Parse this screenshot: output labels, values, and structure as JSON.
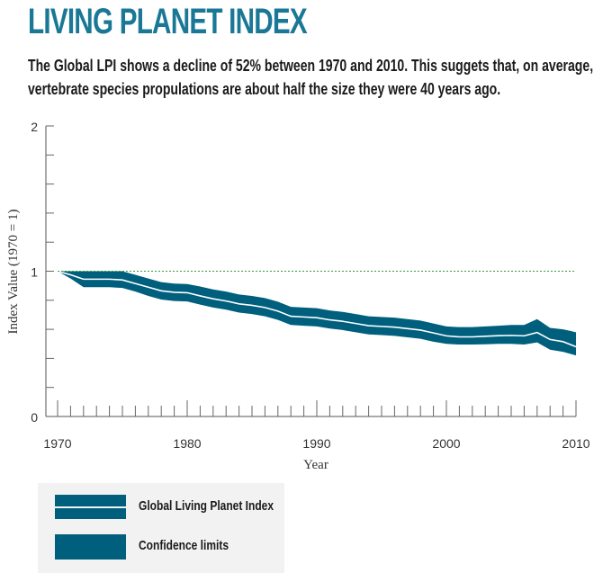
{
  "title": "LIVING PLANET INDEX",
  "subtitle_lines": [
    "The Global LPI shows a decline of 52% between 1970 and 2010. This suggets that, on average,",
    "vertebrate species propulations are about half the size they were 40 years ago."
  ],
  "chart_data": {
    "type": "area",
    "xlabel": "Year",
    "ylabel": "Index Value (1970 = 1)",
    "xlim": [
      1970,
      2010
    ],
    "ylim": [
      0,
      2
    ],
    "x_tick_labels": [
      "1970",
      "1980",
      "1990",
      "2000",
      "2010"
    ],
    "y_tick_labels": [
      "0",
      "1",
      "2"
    ],
    "reference_line": 1,
    "grid": false,
    "legend_placement": "bottom-left",
    "colors": {
      "band": "#005f7d",
      "index_line": "#ffffff",
      "reference_line": "#3a9a3a",
      "title": "#1a7896"
    },
    "x": [
      1970,
      1971,
      1972,
      1973,
      1974,
      1975,
      1976,
      1977,
      1978,
      1979,
      1980,
      1981,
      1982,
      1983,
      1984,
      1985,
      1986,
      1987,
      1988,
      1989,
      1990,
      1991,
      1992,
      1993,
      1994,
      1995,
      1996,
      1997,
      1998,
      1999,
      2000,
      2001,
      2002,
      2003,
      2004,
      2005,
      2006,
      2007,
      2008,
      2009,
      2010
    ],
    "series": [
      {
        "name": "Global Living Planet Index",
        "values": [
          1.0,
          0.975,
          0.945,
          0.945,
          0.945,
          0.94,
          0.915,
          0.89,
          0.865,
          0.855,
          0.852,
          0.83,
          0.81,
          0.795,
          0.775,
          0.765,
          0.75,
          0.725,
          0.69,
          0.685,
          0.68,
          0.665,
          0.655,
          0.64,
          0.625,
          0.62,
          0.615,
          0.605,
          0.595,
          0.575,
          0.555,
          0.548,
          0.548,
          0.552,
          0.556,
          0.558,
          0.555,
          0.578,
          0.53,
          0.515,
          0.48
        ]
      },
      {
        "name": "Confidence limits",
        "upper": [
          1.0,
          1.0,
          1.0,
          1.0,
          1.0,
          1.0,
          0.975,
          0.95,
          0.925,
          0.915,
          0.912,
          0.895,
          0.875,
          0.86,
          0.84,
          0.83,
          0.815,
          0.79,
          0.755,
          0.75,
          0.745,
          0.73,
          0.72,
          0.705,
          0.69,
          0.685,
          0.68,
          0.67,
          0.66,
          0.64,
          0.62,
          0.615,
          0.615,
          0.62,
          0.625,
          0.63,
          0.63,
          0.67,
          0.61,
          0.6,
          0.58
        ],
        "lower": [
          1.0,
          0.95,
          0.89,
          0.89,
          0.89,
          0.885,
          0.86,
          0.83,
          0.805,
          0.795,
          0.792,
          0.77,
          0.75,
          0.735,
          0.715,
          0.705,
          0.69,
          0.665,
          0.63,
          0.625,
          0.62,
          0.605,
          0.595,
          0.58,
          0.565,
          0.56,
          0.555,
          0.545,
          0.535,
          0.515,
          0.5,
          0.495,
          0.495,
          0.497,
          0.5,
          0.5,
          0.495,
          0.51,
          0.46,
          0.445,
          0.42
        ]
      }
    ]
  },
  "legend": {
    "items": [
      {
        "label": "Global Living Planet Index"
      },
      {
        "label": "Confidence limits"
      }
    ]
  }
}
